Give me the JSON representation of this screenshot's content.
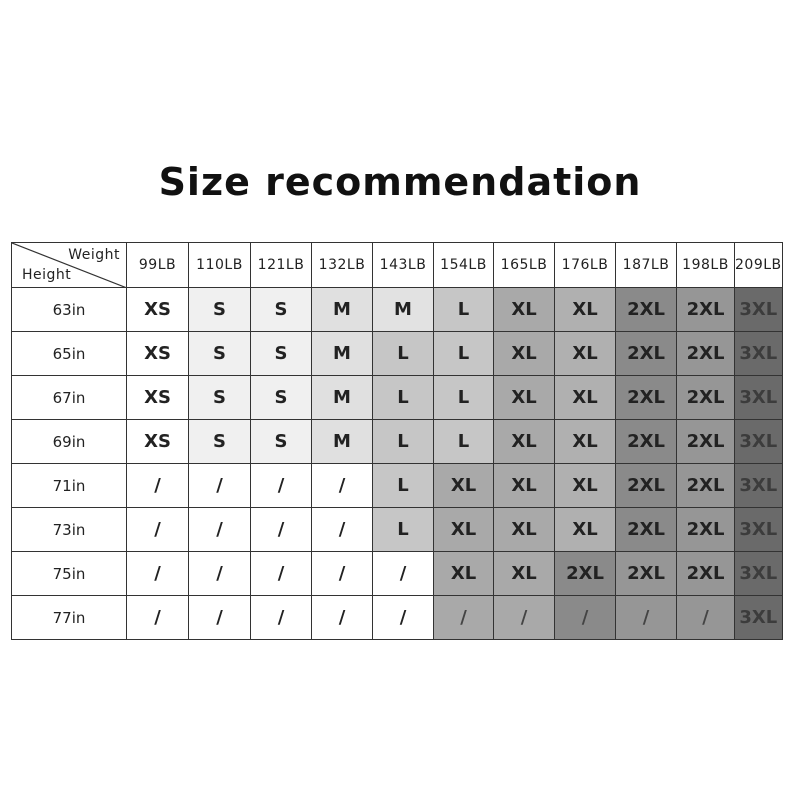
{
  "title": "Size recommendation",
  "chart_data": {
    "type": "table",
    "corner": {
      "column_axis": "Weight",
      "row_axis": "Height"
    },
    "columns": [
      "99LB",
      "110LB",
      "121LB",
      "132LB",
      "143LB",
      "154LB",
      "165LB",
      "176LB",
      "187LB",
      "198LB",
      "209LB"
    ],
    "rows": [
      {
        "height": "63in",
        "cells": [
          "XS",
          "S",
          "S",
          "M",
          "M",
          "L",
          "XL",
          "XL",
          "2XL",
          "2XL",
          "3XL"
        ],
        "shades": [
          "#ffffff",
          "#f0f0f0",
          "#f0f0f0",
          "#e0e0e0",
          "#e2e2e2",
          "#c6c6c6",
          "#a9a9a9",
          "#b0b0b0",
          "#8a8a8a",
          "#969696",
          "#6a6a6a"
        ]
      },
      {
        "height": "65in",
        "cells": [
          "XS",
          "S",
          "S",
          "M",
          "L",
          "L",
          "XL",
          "XL",
          "2XL",
          "2XL",
          "3XL"
        ],
        "shades": [
          "#ffffff",
          "#f0f0f0",
          "#f0f0f0",
          "#e0e0e0",
          "#c6c6c6",
          "#c6c6c6",
          "#a9a9a9",
          "#b0b0b0",
          "#8a8a8a",
          "#969696",
          "#6a6a6a"
        ]
      },
      {
        "height": "67in",
        "cells": [
          "XS",
          "S",
          "S",
          "M",
          "L",
          "L",
          "XL",
          "XL",
          "2XL",
          "2XL",
          "3XL"
        ],
        "shades": [
          "#ffffff",
          "#f0f0f0",
          "#f0f0f0",
          "#e0e0e0",
          "#c6c6c6",
          "#c6c6c6",
          "#a9a9a9",
          "#b0b0b0",
          "#8a8a8a",
          "#969696",
          "#6a6a6a"
        ]
      },
      {
        "height": "69in",
        "cells": [
          "XS",
          "S",
          "S",
          "M",
          "L",
          "L",
          "XL",
          "XL",
          "2XL",
          "2XL",
          "3XL"
        ],
        "shades": [
          "#ffffff",
          "#f0f0f0",
          "#f0f0f0",
          "#e0e0e0",
          "#c6c6c6",
          "#c6c6c6",
          "#a9a9a9",
          "#b0b0b0",
          "#8a8a8a",
          "#969696",
          "#6a6a6a"
        ]
      },
      {
        "height": "71in",
        "cells": [
          "/",
          "/",
          "/",
          "/",
          "L",
          "XL",
          "XL",
          "XL",
          "2XL",
          "2XL",
          "3XL"
        ],
        "shades": [
          "#ffffff",
          "#ffffff",
          "#ffffff",
          "#ffffff",
          "#c6c6c6",
          "#a9a9a9",
          "#a9a9a9",
          "#b0b0b0",
          "#8a8a8a",
          "#969696",
          "#6a6a6a"
        ]
      },
      {
        "height": "73in",
        "cells": [
          "/",
          "/",
          "/",
          "/",
          "L",
          "XL",
          "XL",
          "XL",
          "2XL",
          "2XL",
          "3XL"
        ],
        "shades": [
          "#ffffff",
          "#ffffff",
          "#ffffff",
          "#ffffff",
          "#c6c6c6",
          "#a9a9a9",
          "#a9a9a9",
          "#b0b0b0",
          "#8a8a8a",
          "#969696",
          "#6a6a6a"
        ]
      },
      {
        "height": "75in",
        "cells": [
          "/",
          "/",
          "/",
          "/",
          "/",
          "XL",
          "XL",
          "2XL",
          "2XL",
          "2XL",
          "3XL"
        ],
        "shades": [
          "#ffffff",
          "#ffffff",
          "#ffffff",
          "#ffffff",
          "#ffffff",
          "#a9a9a9",
          "#a9a9a9",
          "#8a8a8a",
          "#969696",
          "#969696",
          "#6a6a6a"
        ]
      },
      {
        "height": "77in",
        "cells": [
          "/",
          "/",
          "/",
          "/",
          "/",
          "/",
          "/",
          "/",
          "/",
          "/",
          "3XL"
        ],
        "shades": [
          "#ffffff",
          "#ffffff",
          "#ffffff",
          "#ffffff",
          "#ffffff",
          "#a9a9a9",
          "#a9a9a9",
          "#8a8a8a",
          "#969696",
          "#969696",
          "#6a6a6a"
        ]
      }
    ]
  }
}
